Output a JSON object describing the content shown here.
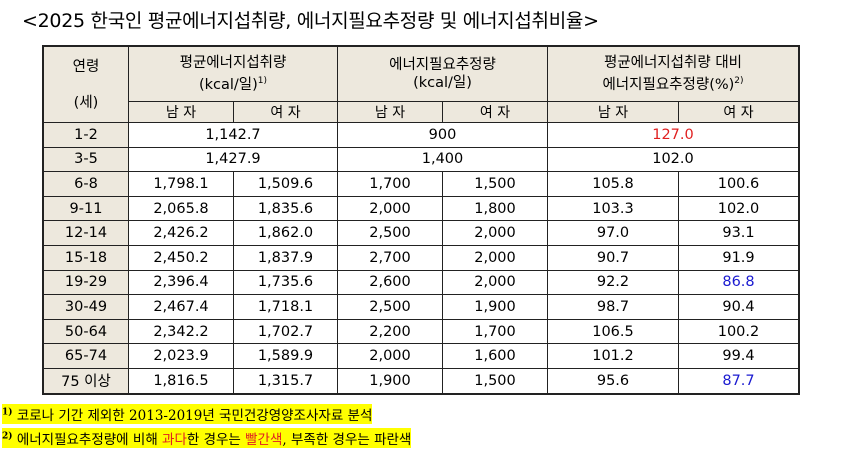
{
  "title": "<2025 한국인 평균에너지섭취량, 에너지필요추정량 및 에너지섭취비율>",
  "header": {
    "age": "연령",
    "age_unit": "(세)",
    "intake": "평균에너지섭취량",
    "intake_unit": "(kcal/일)",
    "intake_sup": "1)",
    "req": "에너지필요추정량",
    "req_unit": "(kcal/일)",
    "ratio": "평균에너지섭취량 대비",
    "ratio2": "에너지필요추정량(%)",
    "ratio_sup": "2)",
    "male": "남 자",
    "female": "여 자"
  },
  "colors": {
    "over": "#e02020",
    "under": "#1a1ad0"
  },
  "rows": [
    {
      "age": "1-2",
      "intake": "1,142.7",
      "req": "900",
      "ratio": "127.0",
      "ratio_color": "red"
    },
    {
      "age": "3-5",
      "intake": "1,427.9",
      "req": "1,400",
      "ratio": "102.0"
    },
    {
      "age": "6-8",
      "im": "1,798.1",
      "if": "1,509.6",
      "rm": "1,700",
      "rf": "1,500",
      "pm": "105.8",
      "pf": "100.6"
    },
    {
      "age": "9-11",
      "im": "2,065.8",
      "if": "1,835.6",
      "rm": "2,000",
      "rf": "1,800",
      "pm": "103.3",
      "pf": "102.0"
    },
    {
      "age": "12-14",
      "im": "2,426.2",
      "if": "1,862.0",
      "rm": "2,500",
      "rf": "2,000",
      "pm": "97.0",
      "pf": "93.1"
    },
    {
      "age": "15-18",
      "im": "2,450.2",
      "if": "1,837.9",
      "rm": "2,700",
      "rf": "2,000",
      "pm": "90.7",
      "pf": "91.9"
    },
    {
      "age": "19-29",
      "im": "2,396.4",
      "if": "1,735.6",
      "rm": "2,600",
      "rf": "2,000",
      "pm": "92.2",
      "pf": "86.8",
      "pf_color": "blue"
    },
    {
      "age": "30-49",
      "im": "2,467.4",
      "if": "1,718.1",
      "rm": "2,500",
      "rf": "1,900",
      "pm": "98.7",
      "pf": "90.4"
    },
    {
      "age": "50-64",
      "im": "2,342.2",
      "if": "1,702.7",
      "rm": "2,200",
      "rf": "1,700",
      "pm": "106.5",
      "pf": "100.2"
    },
    {
      "age": "65-74",
      "im": "2,023.9",
      "if": "1,589.9",
      "rm": "2,000",
      "rf": "1,600",
      "pm": "101.2",
      "pf": "99.4"
    },
    {
      "age": "75 이상",
      "im": "1,816.5",
      "if": "1,315.7",
      "rm": "1,900",
      "rf": "1,500",
      "pm": "95.6",
      "pf": "87.7",
      "pf_color": "blue"
    }
  ],
  "notes": [
    {
      "sup": "1)",
      "text": " 코로나 기간 제외한 2013-2019년 국민건강영양조사자료 분석"
    },
    {
      "sup": "2)",
      "a": " 에너지필요추정량에 비해 ",
      "b": "과다",
      "c": "한 경우는 ",
      "d": "빨간색",
      "e": ", 부족한 경우는 파란색"
    }
  ]
}
